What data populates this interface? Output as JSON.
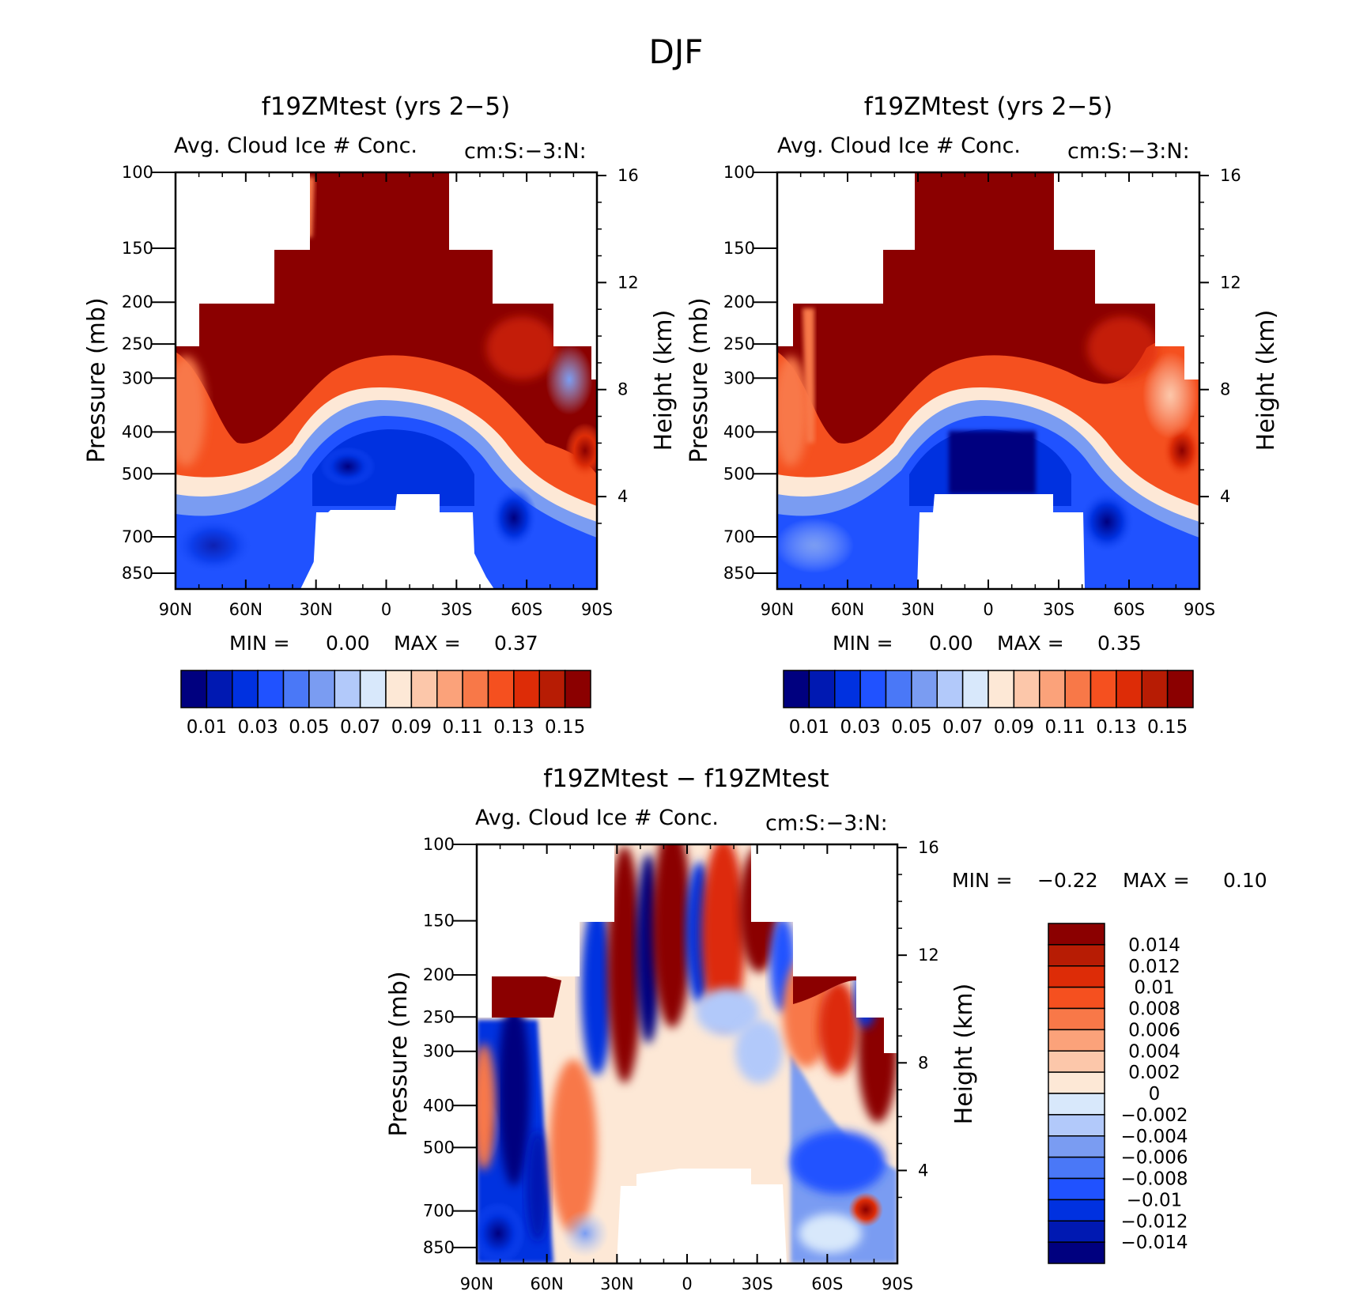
{
  "page_title": "DJF",
  "colors": {
    "sequential": [
      "#00007f",
      "#0019b2",
      "#0031e0",
      "#2052ff",
      "#4a78f7",
      "#7a9cf2",
      "#b2c9fa",
      "#d8e8fb",
      "#fde8d6",
      "#fcc7aa",
      "#fba27a",
      "#f87848",
      "#f5501f",
      "#dd2c07",
      "#b71c04",
      "#8b0000"
    ],
    "diverging": [
      "#8b0000",
      "#b71c04",
      "#dd2c07",
      "#f5501f",
      "#f87848",
      "#fba27a",
      "#fcc7aa",
      "#fde8d6",
      "#d8e8fb",
      "#b2c9fa",
      "#7a9cf2",
      "#4a78f7",
      "#2052ff",
      "#0031e0",
      "#0019b2",
      "#00007f"
    ]
  },
  "chart_data": [
    {
      "type": "heatmap",
      "title": "f19ZMtest (yrs 2−5)",
      "variable_label": "Avg. Cloud Ice # Conc.",
      "units_label": "cm:S:−3:N:",
      "ylabel": "Pressure (mb)",
      "y2label": "Height (km)",
      "x_tick_labels": [
        "90N",
        "60N",
        "30N",
        "0",
        "30S",
        "60S",
        "90S"
      ],
      "x_ticks": [
        90,
        60,
        30,
        0,
        -30,
        -60,
        -90
      ],
      "y_tick_labels": [
        "100",
        "150",
        "200",
        "250",
        "300",
        "400",
        "500",
        "700",
        "850"
      ],
      "y_ticks": [
        100,
        150,
        200,
        250,
        300,
        400,
        500,
        700,
        850
      ],
      "y2_tick_labels": [
        "16",
        "12",
        "8",
        "4"
      ],
      "y2_ticks": [
        16,
        12,
        8,
        4
      ],
      "ylim": [
        100,
        925
      ],
      "xlim": [
        90,
        -90
      ],
      "min_label": "MIN =",
      "min_value": "0.00",
      "max_label": "MAX =",
      "max_value": "0.37",
      "colorbar_levels": [
        0.01,
        0.02,
        0.03,
        0.04,
        0.05,
        0.06,
        0.07,
        0.08,
        0.09,
        0.1,
        0.11,
        0.12,
        0.13,
        0.14,
        0.15
      ],
      "colorbar_labels": [
        "0.01",
        "0.03",
        "0.05",
        "0.07",
        "0.09",
        "0.11",
        "0.13",
        "0.15"
      ]
    },
    {
      "type": "heatmap",
      "title": "f19ZMtest (yrs 2−5)",
      "variable_label": "Avg. Cloud Ice # Conc.",
      "units_label": "cm:S:−3:N:",
      "ylabel": "Pressure (mb)",
      "y2label": "Height (km)",
      "x_tick_labels": [
        "90N",
        "60N",
        "30N",
        "0",
        "30S",
        "60S",
        "90S"
      ],
      "x_ticks": [
        90,
        60,
        30,
        0,
        -30,
        -60,
        -90
      ],
      "y_tick_labels": [
        "100",
        "150",
        "200",
        "250",
        "300",
        "400",
        "500",
        "700",
        "850"
      ],
      "y_ticks": [
        100,
        150,
        200,
        250,
        300,
        400,
        500,
        700,
        850
      ],
      "y2_tick_labels": [
        "16",
        "12",
        "8",
        "4"
      ],
      "y2_ticks": [
        16,
        12,
        8,
        4
      ],
      "ylim": [
        100,
        925
      ],
      "xlim": [
        90,
        -90
      ],
      "min_label": "MIN =",
      "min_value": "0.00",
      "max_label": "MAX =",
      "max_value": "0.35",
      "colorbar_levels": [
        0.01,
        0.02,
        0.03,
        0.04,
        0.05,
        0.06,
        0.07,
        0.08,
        0.09,
        0.1,
        0.11,
        0.12,
        0.13,
        0.14,
        0.15
      ],
      "colorbar_labels": [
        "0.01",
        "0.03",
        "0.05",
        "0.07",
        "0.09",
        "0.11",
        "0.13",
        "0.15"
      ]
    },
    {
      "type": "heatmap",
      "title": "f19ZMtest − f19ZMtest",
      "variable_label": "Avg. Cloud Ice # Conc.",
      "units_label": "cm:S:−3:N:",
      "ylabel": "Pressure (mb)",
      "y2label": "Height (km)",
      "x_tick_labels": [
        "90N",
        "60N",
        "30N",
        "0",
        "30S",
        "60S",
        "90S"
      ],
      "x_ticks": [
        90,
        60,
        30,
        0,
        -30,
        -60,
        -90
      ],
      "y_tick_labels": [
        "100",
        "150",
        "200",
        "250",
        "300",
        "400",
        "500",
        "700",
        "850"
      ],
      "y_ticks": [
        100,
        150,
        200,
        250,
        300,
        400,
        500,
        700,
        850
      ],
      "y2_tick_labels": [
        "16",
        "12",
        "8",
        "4"
      ],
      "y2_ticks": [
        16,
        12,
        8,
        4
      ],
      "ylim": [
        100,
        925
      ],
      "xlim": [
        90,
        -90
      ],
      "min_label": "MIN =",
      "min_value": "−0.22",
      "max_label": "MAX =",
      "max_value": "0.10",
      "colorbar_levels": [
        0.014,
        0.012,
        0.01,
        0.008,
        0.006,
        0.004,
        0.002,
        0,
        -0.002,
        -0.004,
        -0.006,
        -0.008,
        -0.01,
        -0.012,
        -0.014
      ],
      "colorbar_labels": [
        "0.014",
        "0.012",
        "0.01",
        "0.008",
        "0.006",
        "0.004",
        "0.002",
        "0",
        "−0.002",
        "−0.004",
        "−0.006",
        "−0.008",
        "−0.01",
        "−0.012",
        "−0.014"
      ]
    }
  ]
}
